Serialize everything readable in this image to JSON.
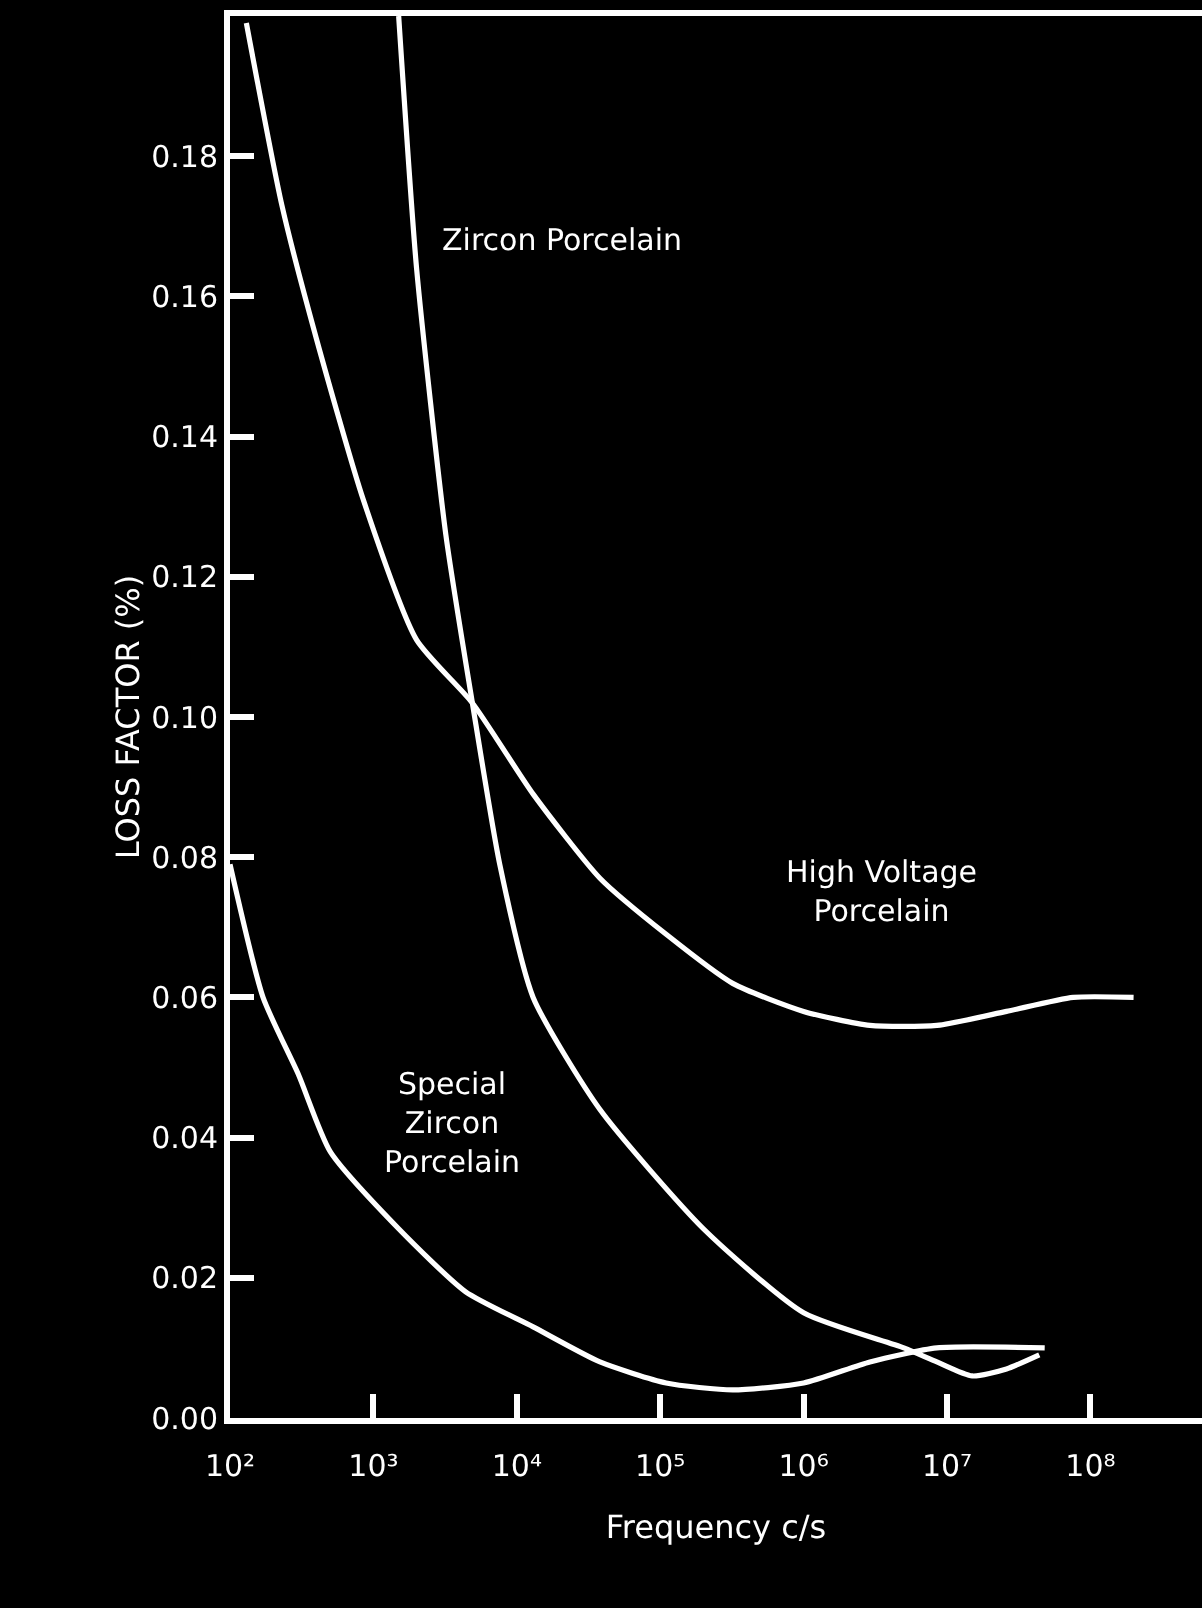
{
  "chart_data": {
    "type": "line",
    "xlabel": "Frequency c/s",
    "ylabel": "LOSS FACTOR (%)",
    "log": "x",
    "grid": false,
    "legend": false,
    "marker": "none",
    "line_style": "solid",
    "xlim": [
      100,
      600000000
    ],
    "ylim": [
      0,
      0.2
    ],
    "xticks": [
      {
        "value": 100,
        "label": "10²"
      },
      {
        "value": 1000,
        "label": "10³"
      },
      {
        "value": 10000,
        "label": "10⁴"
      },
      {
        "value": 100000,
        "label": "10⁵"
      },
      {
        "value": 1000000,
        "label": "10⁶"
      },
      {
        "value": 10000000,
        "label": "10⁷"
      },
      {
        "value": 100000000,
        "label": "10⁸"
      }
    ],
    "yticks": [
      {
        "value": 0,
        "label": "0.00"
      },
      {
        "value": 0.02,
        "label": "0.02"
      },
      {
        "value": 0.04,
        "label": "0.04"
      },
      {
        "value": 0.06,
        "label": "0.06"
      },
      {
        "value": 0.08,
        "label": "0.08"
      },
      {
        "value": 0.1,
        "label": "0.10"
      },
      {
        "value": 0.12,
        "label": "0.12"
      },
      {
        "value": 0.14,
        "label": "0.14"
      },
      {
        "value": 0.16,
        "label": "0.16"
      },
      {
        "value": 0.18,
        "label": "0.18"
      }
    ],
    "series": [
      {
        "name": "Zircon Porcelain",
        "color": "#ffffff",
        "x": [
          1500,
          2000,
          3200,
          4900,
          7600,
          13000,
          38000,
          200000,
          1000000,
          5000000,
          8500000,
          15000000,
          26000000,
          44000000
        ],
        "values": [
          0.2,
          0.164,
          0.126,
          0.102,
          0.079,
          0.06,
          0.044,
          0.027,
          0.015,
          0.01,
          0.008,
          0.006,
          0.007,
          0.009
        ]
      },
      {
        "name": "High Voltage\nPorcelain",
        "color": "#ffffff",
        "x": [
          130,
          230,
          400,
          850,
          2000,
          4900,
          13000,
          38000,
          110000,
          320000,
          1000000,
          2900000,
          8500000,
          26000000,
          76000000,
          200000000
        ],
        "values": [
          0.199,
          0.173,
          0.154,
          0.131,
          0.111,
          0.102,
          0.089,
          0.077,
          0.069,
          0.062,
          0.058,
          0.056,
          0.056,
          0.058,
          0.06,
          0.06
        ]
      },
      {
        "name": "Special\nZircon\nPorcelain",
        "color": "#ffffff",
        "x": [
          100,
          170,
          300,
          500,
          1500,
          4400,
          13000,
          38000,
          110000,
          320000,
          1000000,
          2900000,
          8500000,
          48000000
        ],
        "values": [
          0.079,
          0.06,
          0.049,
          0.038,
          0.027,
          0.018,
          0.013,
          0.008,
          0.005,
          0.004,
          0.005,
          0.008,
          0.01,
          0.01
        ]
      }
    ]
  }
}
